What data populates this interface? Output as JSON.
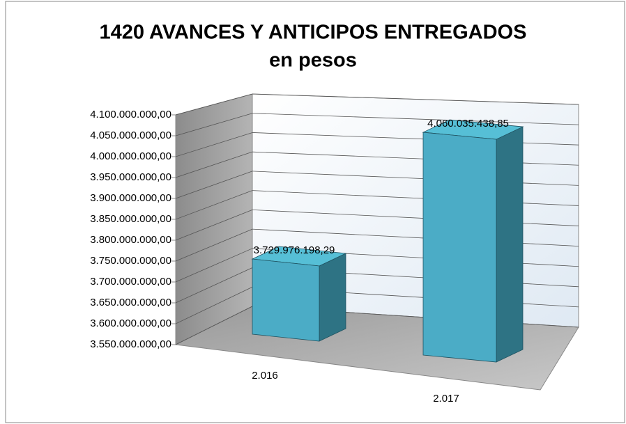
{
  "chart_data": {
    "type": "bar3d",
    "title": "1420 AVANCES Y ANTICIPOS ENTREGADOS",
    "subtitle": "en pesos",
    "categories": [
      "2.016",
      "2.017"
    ],
    "values": [
      3729976198.29,
      4060035438.85
    ],
    "value_labels": [
      "3.729.976.198,29",
      "4.060.035.438,85"
    ],
    "color": "#4bacc6",
    "ylim": [
      3550000000,
      4100000000
    ],
    "yticks": [
      {
        "value": 3550000000,
        "label": "3.550.000.000,00"
      },
      {
        "value": 3600000000,
        "label": "3.600.000.000,00"
      },
      {
        "value": 3650000000,
        "label": "3.650.000.000,00"
      },
      {
        "value": 3700000000,
        "label": "3.700.000.000,00"
      },
      {
        "value": 3750000000,
        "label": "3.750.000.000,00"
      },
      {
        "value": 3800000000,
        "label": "3.800.000.000,00"
      },
      {
        "value": 3850000000,
        "label": "3.850.000.000,00"
      },
      {
        "value": 3900000000,
        "label": "3.900.000.000,00"
      },
      {
        "value": 3950000000,
        "label": "3.950.000.000,00"
      },
      {
        "value": 4000000000,
        "label": "4.000.000.000,00"
      },
      {
        "value": 4050000000,
        "label": "4.050.000.000,00"
      },
      {
        "value": 4100000000,
        "label": "4.100.000.000,00"
      }
    ],
    "grid": true
  }
}
